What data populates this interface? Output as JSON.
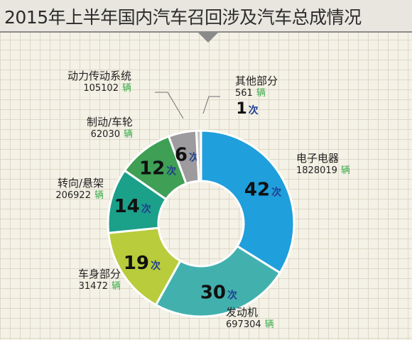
{
  "title": "2015年上半年国内汽车召回涉及汽车总成情况",
  "times_unit": "次",
  "vehicle_unit": "辆",
  "colors": {
    "accent_green": "#3cab4a",
    "times_text": "#1f3f8f"
  },
  "chart_data": {
    "type": "pie",
    "title": "2015年上半年国内汽车召回涉及汽车总成情况",
    "categories": [
      "电子电器",
      "发动机",
      "车身部分",
      "转向/悬架",
      "制动/车轮",
      "动力传动系统",
      "其他部分"
    ],
    "series": [
      {
        "values": [
          42,
          30,
          19,
          14,
          12,
          6,
          1
        ]
      },
      {
        "values": [
          1828019,
          697304,
          31472,
          206922,
          62030,
          105102,
          561
        ]
      }
    ],
    "colors": [
      "#1f9fdc",
      "#42b1ae",
      "#b8cc3c",
      "#1ba08a",
      "#3e9f55",
      "#9d9b9e",
      "#c5c5c5"
    ]
  }
}
